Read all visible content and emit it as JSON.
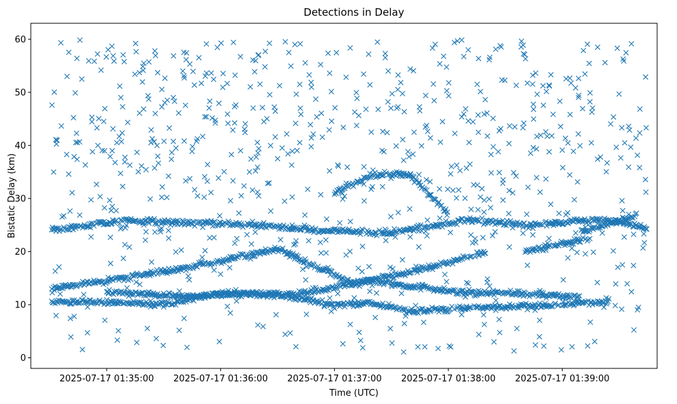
{
  "chart_data": {
    "type": "scatter",
    "title": "Detections in Delay",
    "xlabel": "Time (UTC)",
    "ylabel": "Bistatic Delay (km)",
    "marker": "x",
    "color": "#1f77b4",
    "grid": false,
    "legend": "none",
    "x_ticks": [
      "2025-07-17 01:35:00",
      "2025-07-17 01:36:00",
      "2025-07-17 01:37:00",
      "2025-07-17 01:38:00",
      "2025-07-17 01:39:00"
    ],
    "y_ticks": [
      "0",
      "10",
      "20",
      "30",
      "40",
      "50",
      "60"
    ],
    "xlim": [
      "2025-07-17 01:34:20",
      "2025-07-17 01:39:50"
    ],
    "ylim": [
      -2,
      63
    ],
    "tracks": [
      {
        "x": [
          "01:34:31",
          "01:35:10",
          "01:35:50",
          "01:36:30",
          "01:37:10",
          "01:37:50",
          "01:38:20"
        ],
        "y": [
          13.0,
          15.0,
          17.5,
          20.5,
          14.0,
          17.0,
          20.0
        ]
      },
      {
        "x": [
          "01:34:31",
          "01:35:00",
          "01:35:30",
          "01:36:00",
          "01:36:30",
          "01:37:00",
          "01:37:20",
          "01:37:40",
          "01:38:20",
          "01:39:00",
          "01:39:25"
        ],
        "y": [
          10.5,
          10.5,
          10.0,
          12.2,
          11.8,
          10.0,
          10.2,
          8.8,
          9.5,
          10.0,
          10.5
        ]
      },
      {
        "x": [
          "01:34:31",
          "01:35:10",
          "01:35:40",
          "01:36:20",
          "01:36:50",
          "01:37:30",
          "01:38:10",
          "01:38:40",
          "01:39:20",
          "01:39:45"
        ],
        "y": [
          24.0,
          26.0,
          25.5,
          25.0,
          24.0,
          23.5,
          26.0,
          25.0,
          26.0,
          24.5
        ]
      },
      {
        "x": [
          "01:35:00",
          "01:35:40",
          "01:36:10",
          "01:36:40",
          "01:37:20",
          "01:38:00",
          "01:38:40",
          "01:39:10"
        ],
        "y": [
          12.5,
          11.5,
          12.0,
          12.0,
          14.5,
          12.5,
          12.0,
          11.5
        ]
      },
      {
        "x": [
          "01:38:40",
          "01:39:00",
          "01:39:15"
        ],
        "y": [
          20.0,
          21.5,
          22.5
        ]
      },
      {
        "x": [
          "01:37:00",
          "01:37:20",
          "01:37:40",
          "01:38:00"
        ],
        "y": [
          31.0,
          34.5,
          34.5,
          27.0
        ]
      },
      {
        "x": [
          "01:39:10",
          "01:39:40"
        ],
        "y": [
          23.5,
          27.0
        ]
      }
    ],
    "scattered_region": {
      "x_range": [
        "01:34:31",
        "01:39:45"
      ],
      "y_range": [
        0.5,
        60
      ]
    },
    "n_detections_approx": 2300
  }
}
